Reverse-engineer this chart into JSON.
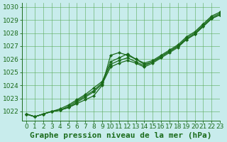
{
  "title": "Graphe pression niveau de la mer (hPa)",
  "background_color": "#c8ecec",
  "grid_color": "#5aaa5a",
  "line_color": "#1a6b1a",
  "xlim": [
    -0.5,
    23
  ],
  "ylim": [
    1021.3,
    1030.3
  ],
  "yticks": [
    1022,
    1023,
    1024,
    1025,
    1026,
    1027,
    1028,
    1029,
    1030
  ],
  "xticks": [
    0,
    1,
    2,
    3,
    4,
    5,
    6,
    7,
    8,
    9,
    10,
    11,
    12,
    13,
    14,
    15,
    16,
    17,
    18,
    19,
    20,
    21,
    22,
    23
  ],
  "series": [
    [
      1021.8,
      1021.6,
      1021.8,
      1022.0,
      1022.1,
      1022.3,
      1022.6,
      1022.9,
      1023.2,
      1024.0,
      1026.3,
      1026.5,
      1026.3,
      1026.0,
      1025.6,
      1025.8,
      1026.2,
      1026.6,
      1027.0,
      1027.5,
      1027.9,
      1028.5,
      1029.1,
      1029.4
    ],
    [
      1021.8,
      1021.6,
      1021.8,
      1022.0,
      1022.1,
      1022.3,
      1022.7,
      1023.1,
      1023.5,
      1024.1,
      1025.4,
      1025.7,
      1025.9,
      1025.7,
      1025.4,
      1025.7,
      1026.1,
      1026.5,
      1026.9,
      1027.5,
      1027.9,
      1028.5,
      1029.1,
      1029.4
    ],
    [
      1021.8,
      1021.6,
      1021.8,
      1022.0,
      1022.1,
      1022.4,
      1022.8,
      1023.2,
      1023.6,
      1024.2,
      1025.6,
      1025.9,
      1026.1,
      1025.8,
      1025.5,
      1025.8,
      1026.2,
      1026.6,
      1027.0,
      1027.6,
      1028.0,
      1028.6,
      1029.2,
      1029.5
    ],
    [
      1021.8,
      1021.6,
      1021.8,
      1022.0,
      1022.2,
      1022.5,
      1022.9,
      1023.3,
      1023.8,
      1024.3,
      1025.8,
      1026.1,
      1026.4,
      1026.0,
      1025.7,
      1025.9,
      1026.3,
      1026.7,
      1027.1,
      1027.7,
      1028.1,
      1028.7,
      1029.3,
      1029.6
    ]
  ],
  "title_fontsize": 8,
  "tick_fontsize": 6.5
}
